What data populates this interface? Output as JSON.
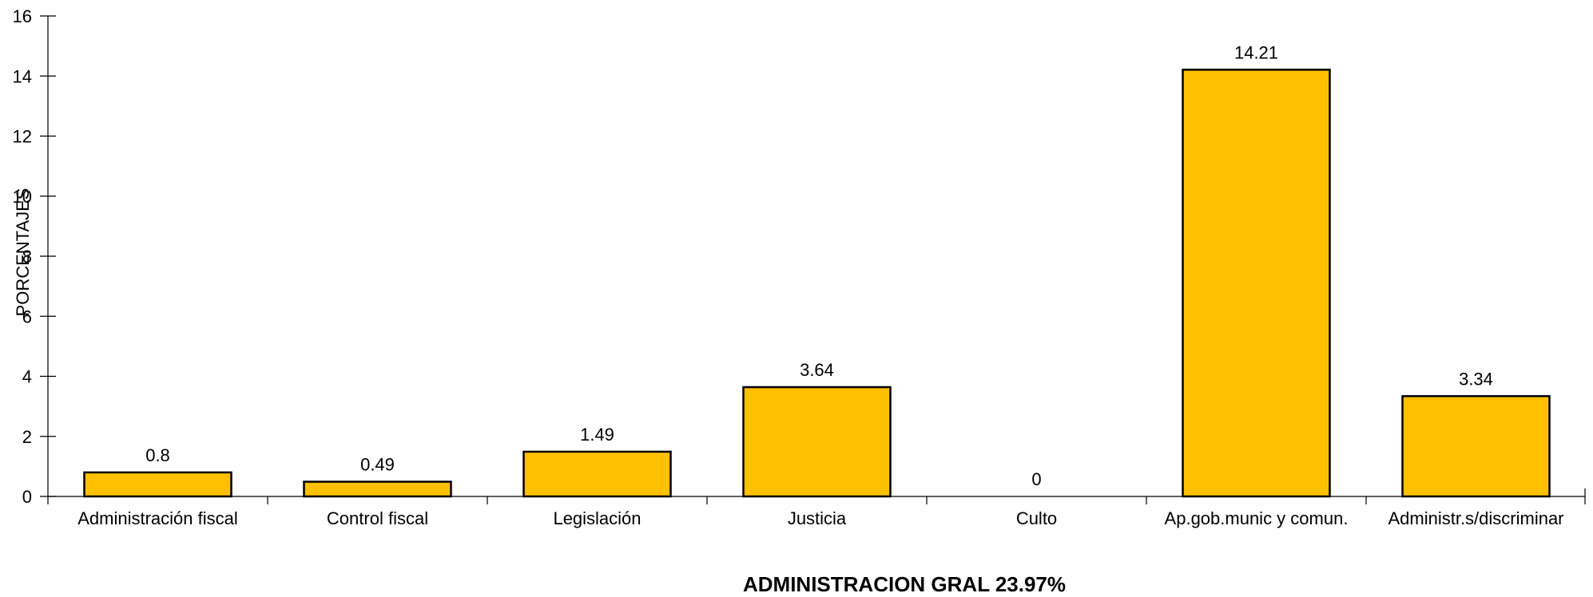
{
  "chart_data": {
    "type": "bar",
    "categories": [
      "Administración fiscal",
      "Control fiscal",
      "Legislación",
      "Justicia",
      "Culto",
      "Ap.gob.munic y comun.",
      "Administr.s/discriminar"
    ],
    "values": [
      0.8,
      0.49,
      1.49,
      3.64,
      0,
      14.21,
      3.34
    ],
    "data_labels": [
      "0.8",
      "0.49",
      "1.49",
      "3.64",
      "0",
      "14.21",
      "3.34"
    ],
    "yticks": [
      0,
      2,
      4,
      6,
      8,
      10,
      12,
      14,
      16
    ],
    "ylim": [
      0,
      16
    ],
    "ylabel": "PORCENTAJES",
    "xlabel": "ADMINISTRACION GRAL 23.97%",
    "title": "",
    "grid": false,
    "bar_color": "#ffc000",
    "bar_border": "#000000"
  }
}
